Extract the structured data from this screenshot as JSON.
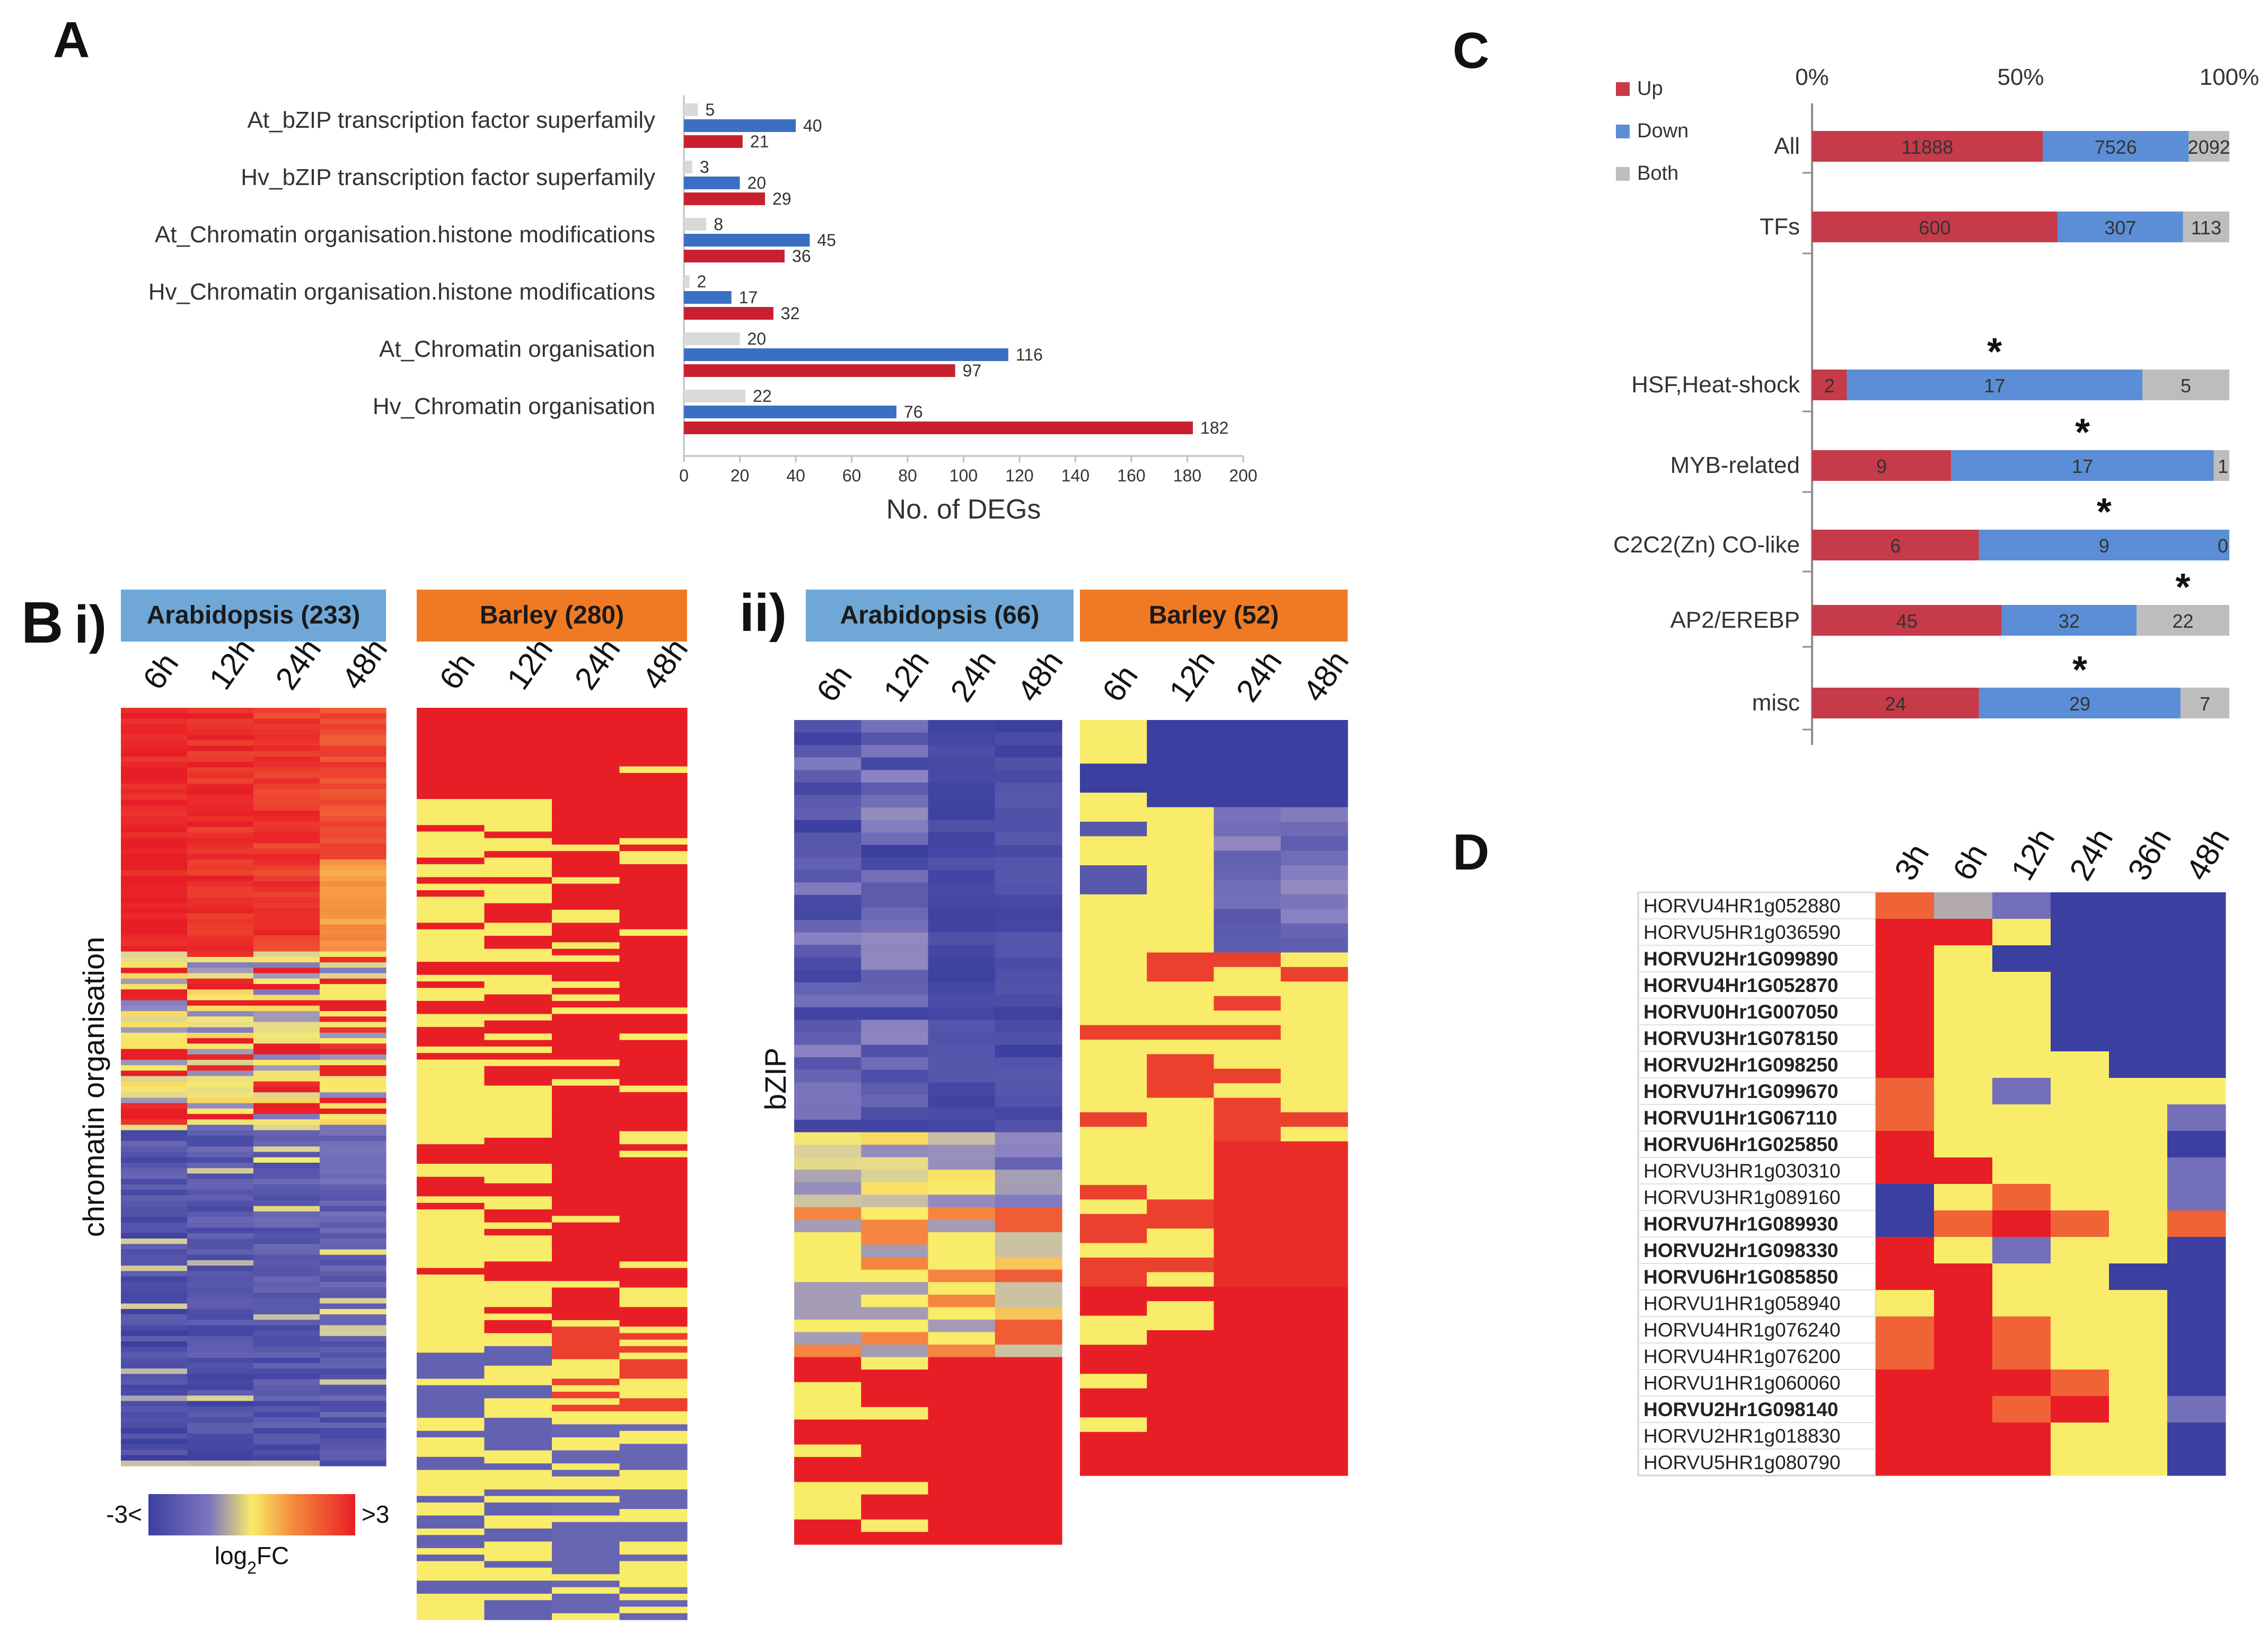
{
  "colors": {
    "up": "#c63a4a",
    "down": "#5b8ed6",
    "both": "#bdbdbd",
    "barA_gray": "#d9d9d9",
    "barA_blue": "#3b6fc4",
    "barA_red": "#c8202f",
    "header_arab": "#6fa8d6",
    "header_barley": "#f07a24",
    "heat_low": "#3b3fa0",
    "heat_mid": "#f9ec6a",
    "heat_high": "#e81e26"
  },
  "chart_data": [
    {
      "panel": "A",
      "type": "bar",
      "orientation": "horizontal",
      "categories": [
        "At_bZIP  transcription factor superfamily",
        "Hv_bZIP  transcription factor superfamily",
        "At_Chromatin organisation.histone modifications",
        "Hv_Chromatin organisation.histone modifications",
        "At_Chromatin organisation",
        "Hv_Chromatin organisation"
      ],
      "series": [
        {
          "name": "Both",
          "values": [
            5,
            3,
            8,
            2,
            20,
            22
          ]
        },
        {
          "name": "Down",
          "values": [
            40,
            20,
            45,
            17,
            116,
            76
          ]
        },
        {
          "name": "Up",
          "values": [
            21,
            29,
            36,
            32,
            97,
            182
          ]
        }
      ],
      "xticks": [
        "0",
        "20",
        "40",
        "60",
        "80",
        "100",
        "120",
        "140",
        "160",
        "180",
        "200"
      ],
      "xlim": [
        0,
        200
      ],
      "xlabel": "No. of DEGs"
    },
    {
      "panel": "C",
      "type": "bar",
      "orientation": "horizontal",
      "stacked_percent": true,
      "categories": [
        "All",
        "TFs",
        "HSF,Heat-shock",
        "MYB-related",
        "C2C2(Zn) CO-like",
        "AP2/EREBP",
        "misc"
      ],
      "series": [
        {
          "name": "Up",
          "values": [
            11888,
            600,
            2,
            9,
            6,
            45,
            24
          ]
        },
        {
          "name": "Down",
          "values": [
            7526,
            307,
            17,
            17,
            9,
            32,
            29
          ]
        },
        {
          "name": "Both",
          "values": [
            2092,
            113,
            5,
            1,
            0,
            22,
            7
          ]
        }
      ],
      "significant": [
        false,
        false,
        true,
        true,
        true,
        true,
        true
      ],
      "star_symbol": "*",
      "xticks": [
        "0%",
        "50%",
        "100%"
      ],
      "legend": [
        "Up",
        "Down",
        "Both"
      ]
    },
    {
      "panel": "B",
      "type": "heatmap",
      "subpanels": [
        {
          "label": "i)",
          "ylabel": "chromatin organisation",
          "groups": [
            {
              "title": "Arabidopsis (233)",
              "columns": [
                "6h",
                "12h",
                "24h",
                "48h"
              ]
            },
            {
              "title": "Barley (280)",
              "columns": [
                "6h",
                "12h",
                "24h",
                "48h"
              ]
            }
          ]
        },
        {
          "label": "ii)",
          "ylabel": "bZIP",
          "groups": [
            {
              "title": "Arabidopsis (66)",
              "columns": [
                "6h",
                "12h",
                "24h",
                "48h"
              ]
            },
            {
              "title": "Barley (52)",
              "columns": [
                "6h",
                "12h",
                "24h",
                "48h"
              ]
            }
          ]
        }
      ],
      "colorbar": {
        "min_label": "-3<",
        "max_label": ">3",
        "title": "log2FC",
        "title_base": "log",
        "title_sub": "2",
        "title_rest": "FC"
      }
    },
    {
      "panel": "D",
      "type": "heatmap",
      "columns": [
        "3h",
        "6h",
        "12h",
        "24h",
        "36h",
        "48h"
      ],
      "rows": [
        {
          "gene": "HORVU4HR1g052880",
          "bold": false
        },
        {
          "gene": "HORVU5HR1g036590",
          "bold": false
        },
        {
          "gene": "HORVU2Hr1G099890",
          "bold": true
        },
        {
          "gene": "HORVU4Hr1G052870",
          "bold": true
        },
        {
          "gene": "HORVU0Hr1G007050",
          "bold": true
        },
        {
          "gene": "HORVU3Hr1G078150",
          "bold": true
        },
        {
          "gene": "HORVU2Hr1G098250",
          "bold": true
        },
        {
          "gene": "HORVU7Hr1G099670",
          "bold": true
        },
        {
          "gene": "HORVU1Hr1G067110",
          "bold": true
        },
        {
          "gene": "HORVU6Hr1G025850",
          "bold": true
        },
        {
          "gene": "HORVU3HR1g030310",
          "bold": false
        },
        {
          "gene": "HORVU3HR1g089160",
          "bold": false
        },
        {
          "gene": "HORVU7Hr1G089930",
          "bold": true
        },
        {
          "gene": "HORVU2Hr1G098330",
          "bold": true
        },
        {
          "gene": "HORVU6Hr1G085850",
          "bold": true
        },
        {
          "gene": "HORVU1HR1g058940",
          "bold": false
        },
        {
          "gene": "HORVU4HR1g076240",
          "bold": false
        },
        {
          "gene": "HORVU4HR1g076200",
          "bold": false
        },
        {
          "gene": "HORVU1HR1g060060",
          "bold": false
        },
        {
          "gene": "HORVU2Hr1G098140",
          "bold": true
        },
        {
          "gene": "HORVU2HR1g018830",
          "bold": false
        },
        {
          "gene": "HORVU5HR1g080790",
          "bold": false
        }
      ],
      "values": [
        [
          2,
          -1,
          -2,
          -3,
          -3,
          -3
        ],
        [
          3,
          3,
          0,
          -3,
          -3,
          -3
        ],
        [
          3,
          0,
          -3,
          -3,
          -3,
          -3
        ],
        [
          3,
          0,
          0,
          -3,
          -3,
          -3
        ],
        [
          3,
          0,
          0,
          -3,
          -3,
          -3
        ],
        [
          3,
          0,
          0,
          -3,
          -3,
          -3
        ],
        [
          3,
          0,
          0,
          0,
          -3,
          -3
        ],
        [
          2,
          0,
          -2,
          0,
          0,
          0
        ],
        [
          2,
          0,
          0,
          0,
          0,
          -2
        ],
        [
          3,
          0,
          0,
          0,
          0,
          -3
        ],
        [
          3,
          3,
          0,
          0,
          0,
          -2
        ],
        [
          -3,
          0,
          2,
          0,
          0,
          -2
        ],
        [
          -3,
          2,
          3,
          2,
          0,
          2
        ],
        [
          3,
          0,
          -2,
          0,
          0,
          -3
        ],
        [
          3,
          3,
          0,
          0,
          -3,
          -3
        ],
        [
          0,
          3,
          0,
          0,
          0,
          -3
        ],
        [
          2,
          3,
          2,
          0,
          0,
          -3
        ],
        [
          2,
          3,
          2,
          0,
          0,
          -3
        ],
        [
          3,
          3,
          3,
          2,
          0,
          -3
        ],
        [
          3,
          3,
          2,
          3,
          0,
          -2
        ],
        [
          3,
          3,
          3,
          0,
          0,
          -3
        ],
        [
          3,
          3,
          3,
          0,
          0,
          -3
        ]
      ]
    }
  ],
  "panels": {
    "A": "A",
    "B": "B",
    "C": "C",
    "D": "D"
  }
}
